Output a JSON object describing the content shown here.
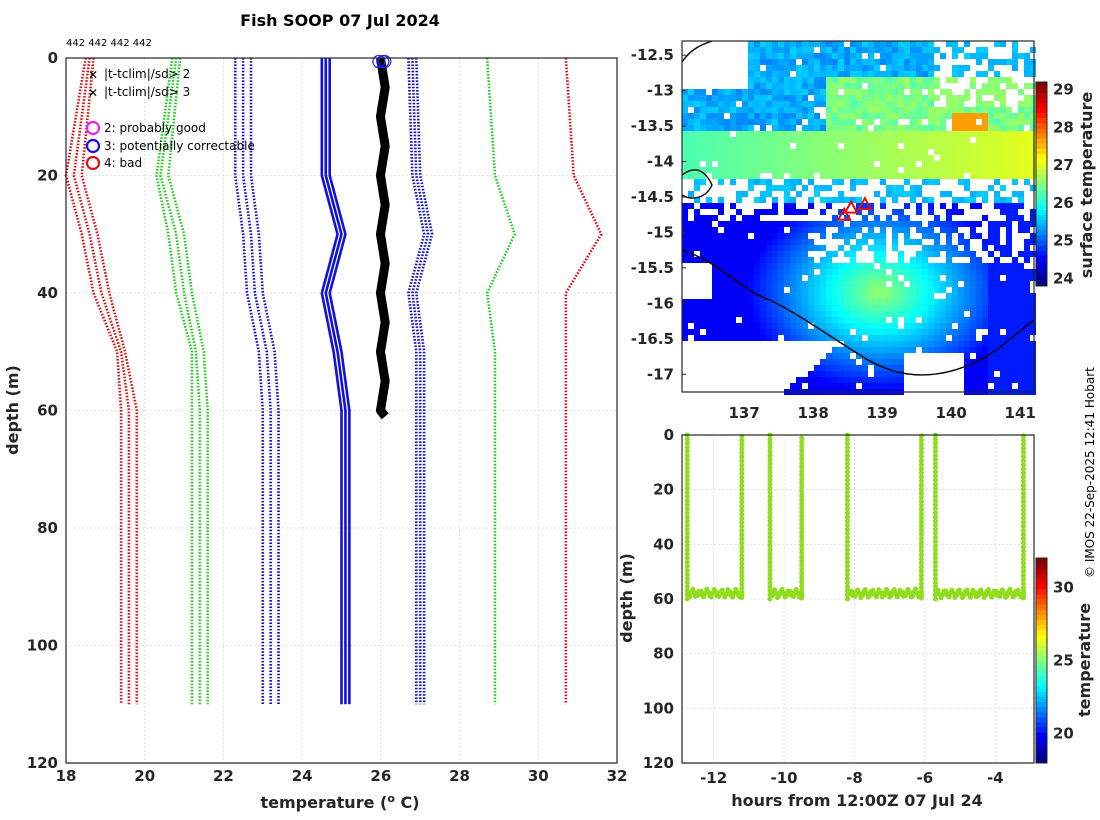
{
  "chart_data": [
    {
      "type": "line",
      "title": "Fish SOOP 07 Jul 2024",
      "station_ids": "442 442 442 442",
      "xlabel": "temperature (",
      "xlabel_sup": "o",
      "xlabel_end": " C)",
      "ylabel": "depth (m)",
      "xlim": [
        18,
        32
      ],
      "ylim": [
        0,
        120
      ],
      "xticks": [
        18,
        20,
        22,
        24,
        26,
        28,
        30,
        32
      ],
      "yticks": [
        0,
        20,
        40,
        60,
        80,
        100,
        120
      ],
      "legend": [
        {
          "label": "|t-tclim|/sd> 2",
          "color": "#22cc22",
          "marker": "x"
        },
        {
          "label": "|t-tclim|/sd> 3",
          "color": "#dd1111",
          "marker": "x"
        },
        {
          "label": "2: probably good",
          "color": "#ee22ee",
          "marker": "o"
        },
        {
          "label": "3: potentially correctable",
          "color": "#1111ee",
          "marker": "o"
        },
        {
          "label": "4: bad",
          "color": "#dd1111",
          "marker": "o"
        }
      ],
      "depths": [
        0,
        20,
        30,
        40,
        50,
        60,
        110
      ],
      "series": [
        {
          "name": "clim-3sd-a",
          "color": "#dd1111",
          "dotted": true,
          "values": [
            18.6,
            18.2,
            18.6,
            18.9,
            19.4,
            19.6,
            19.6
          ]
        },
        {
          "name": "clim-3sd-b",
          "color": "#dd1111",
          "dotted": true,
          "values": [
            18.7,
            18.4,
            18.8,
            19.1,
            19.5,
            19.8,
            19.8
          ]
        },
        {
          "name": "clim-3sd-c",
          "color": "#dd1111",
          "dotted": true,
          "values": [
            18.5,
            18.0,
            18.4,
            18.7,
            19.3,
            19.4,
            19.4
          ]
        },
        {
          "name": "clim-2sd-a",
          "color": "#22cc22",
          "dotted": true,
          "values": [
            20.8,
            20.4,
            20.8,
            21.0,
            21.3,
            21.4,
            21.4
          ]
        },
        {
          "name": "clim-2sd-b",
          "color": "#22cc22",
          "dotted": true,
          "values": [
            20.9,
            20.6,
            21.0,
            21.2,
            21.5,
            21.6,
            21.6
          ]
        },
        {
          "name": "clim-2sd-c",
          "color": "#22cc22",
          "dotted": true,
          "values": [
            20.7,
            20.3,
            20.6,
            20.8,
            21.2,
            21.2,
            21.2
          ]
        },
        {
          "name": "clim-sd-a",
          "color": "#1111cc",
          "dotted": true,
          "values": [
            22.5,
            22.5,
            22.7,
            22.8,
            23.1,
            23.2,
            23.2
          ]
        },
        {
          "name": "clim-sd-b",
          "color": "#1111cc",
          "dotted": true,
          "values": [
            22.7,
            22.7,
            22.9,
            23.0,
            23.3,
            23.4,
            23.4
          ]
        },
        {
          "name": "clim-sd-c",
          "color": "#1111cc",
          "dotted": true,
          "values": [
            22.3,
            22.3,
            22.5,
            22.6,
            22.9,
            23.0,
            23.0
          ]
        },
        {
          "name": "clim-mean-a",
          "color": "#1111dd",
          "dotted": false,
          "values": [
            24.6,
            24.6,
            25.0,
            24.6,
            24.9,
            25.1,
            25.1
          ]
        },
        {
          "name": "clim-mean-b",
          "color": "#1111dd",
          "dotted": false,
          "values": [
            24.7,
            24.7,
            25.1,
            24.7,
            25.0,
            25.2,
            25.2
          ]
        },
        {
          "name": "clim-mean-c",
          "color": "#1111dd",
          "dotted": false,
          "values": [
            24.5,
            24.5,
            24.9,
            24.5,
            24.8,
            25.0,
            25.0
          ]
        },
        {
          "name": "clim+sd-a",
          "color": "#1111cc",
          "dotted": true,
          "values": [
            26.8,
            26.9,
            27.2,
            26.8,
            27.0,
            27.0,
            27.0
          ]
        },
        {
          "name": "clim+sd-b",
          "color": "#1111cc",
          "dotted": true,
          "values": [
            26.7,
            26.8,
            27.1,
            26.7,
            26.9,
            26.9,
            26.9
          ]
        },
        {
          "name": "clim+sd-c",
          "color": "#1111cc",
          "dotted": true,
          "values": [
            26.9,
            27.0,
            27.3,
            26.9,
            27.1,
            27.1,
            27.1
          ]
        },
        {
          "name": "clim+2sd-a",
          "color": "#22cc22",
          "dotted": true,
          "values": [
            28.7,
            28.9,
            29.4,
            28.7,
            28.9,
            28.9,
            28.9
          ]
        },
        {
          "name": "clim+3sd-a",
          "color": "#dd1111",
          "dotted": true,
          "values": [
            30.7,
            30.9,
            31.6,
            30.7,
            30.7,
            30.7,
            30.7
          ]
        },
        {
          "name": "obs-profile",
          "color": "#000000",
          "dotted": false,
          "values": [
            26.05,
            26.05,
            26.05,
            26.05,
            26.05,
            26.05,
            null
          ]
        }
      ],
      "obs_max_depth": 61,
      "surface_markers": [
        25.95,
        26.05,
        26.1
      ]
    },
    {
      "type": "heatmap",
      "colorbar_label": "surface temperature",
      "xlim": [
        136.1,
        141.2
      ],
      "ylim": [
        -17.25,
        -12.3
      ],
      "xticks": [
        137,
        138,
        139,
        140,
        141
      ],
      "yticks": [
        -12.5,
        -13,
        -13.5,
        -14,
        -14.5,
        -15,
        -15.5,
        -16,
        -16.5,
        -17
      ],
      "colorbar_ticks": [
        24,
        25,
        26,
        27,
        28,
        29
      ],
      "colorbar_range": [
        23.8,
        29.2
      ],
      "track_points": [
        [
          138.45,
          -14.75
        ],
        [
          138.55,
          -14.65
        ],
        [
          138.75,
          -14.6
        ]
      ]
    },
    {
      "type": "scatter",
      "xlabel": "hours from 12:00Z 07 Jul 24",
      "ylabel": "depth (m)",
      "xlim": [
        -12.9,
        -2.9
      ],
      "ylim": [
        0,
        120
      ],
      "xticks": [
        -12,
        -10,
        -8,
        -6,
        -4
      ],
      "yticks": [
        0,
        20,
        40,
        60,
        80,
        100,
        120
      ],
      "colorbar_label": "temperature",
      "colorbar_ticks": [
        20,
        25,
        30
      ],
      "colorbar_range": [
        18,
        32
      ],
      "point_color": "#8fde1e",
      "segments": [
        {
          "start": -12.75,
          "end": -11.2
        },
        {
          "start": -10.4,
          "end": -9.5
        },
        {
          "start": -8.2,
          "end": -6.1
        },
        {
          "start": -5.7,
          "end": -3.2
        }
      ]
    }
  ],
  "credit": "© IMOS 22-Sep-2025 12:41 Hobart"
}
